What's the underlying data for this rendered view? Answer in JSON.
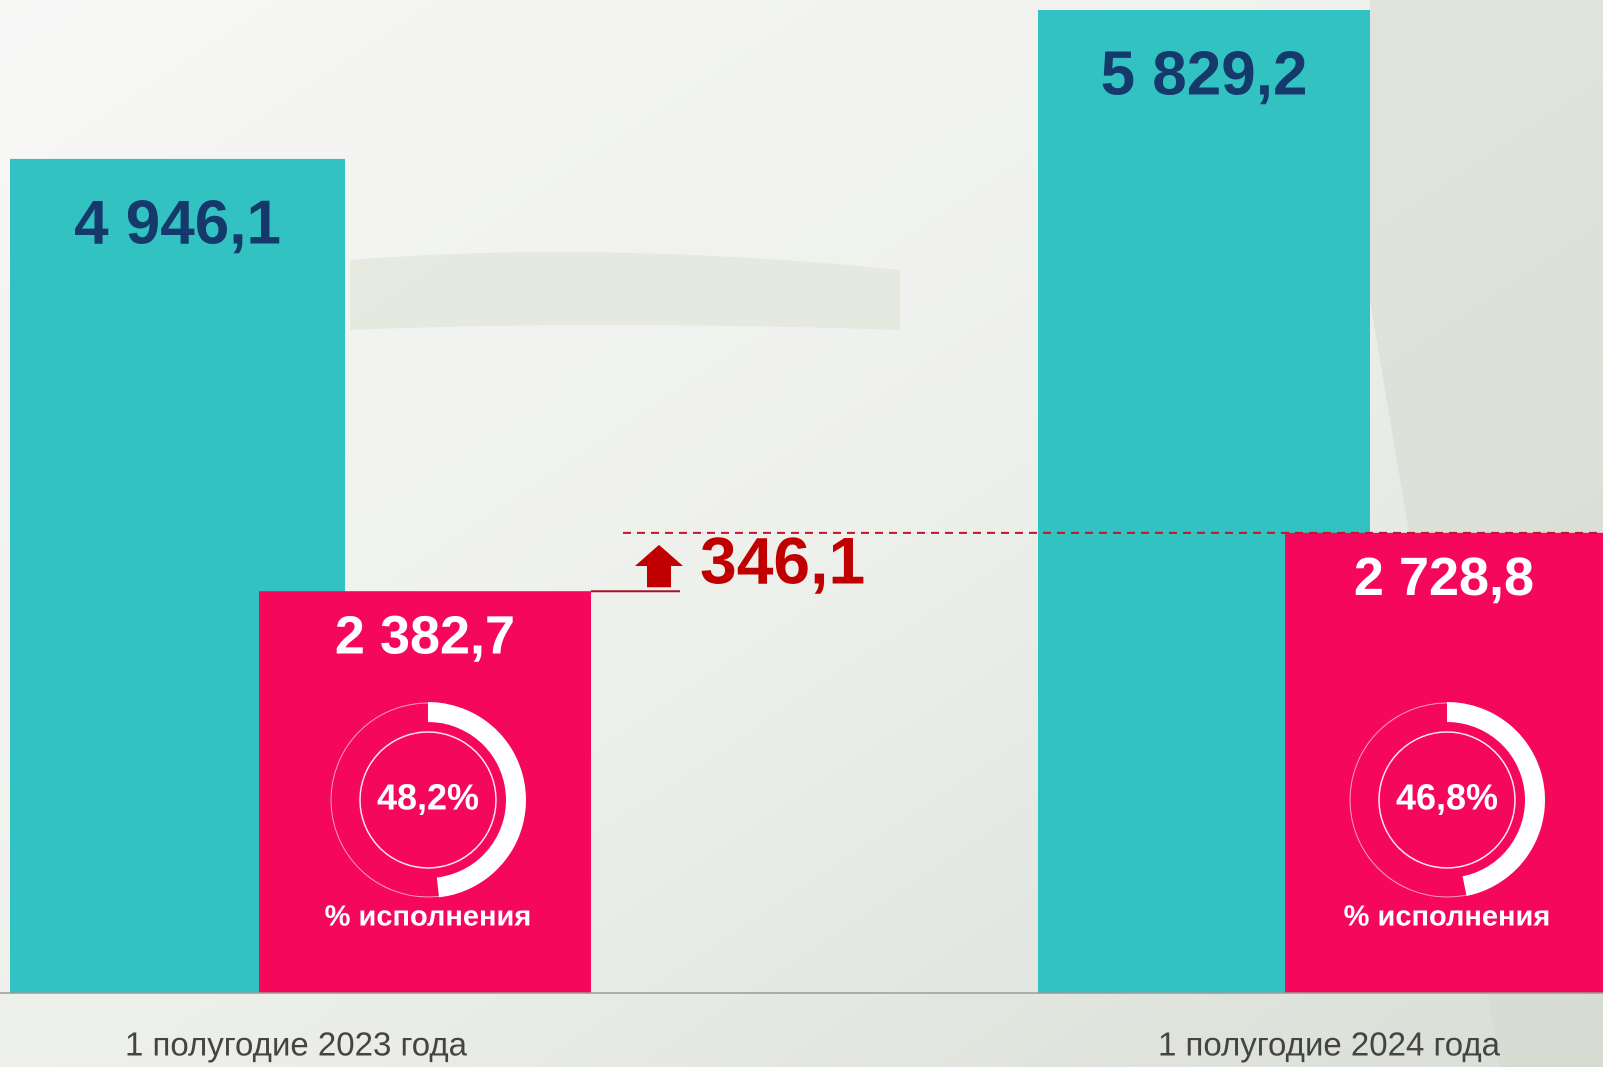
{
  "chart_data": {
    "type": "bar",
    "categories": [
      "1 полугодие 2023 года",
      "1 полугодие 2024 года"
    ],
    "series": [
      {
        "color": "#33c2c2",
        "values": [
          4946.1,
          5829.2
        ],
        "value_labels": [
          "4 946,1",
          "5 829,2"
        ]
      },
      {
        "color": "#f5085c",
        "values": [
          2382.7,
          2728.8
        ],
        "value_labels": [
          "2 382,7",
          "2 728,8"
        ]
      }
    ],
    "percent_values": [
      48.2,
      46.8
    ],
    "percent_labels": [
      "48,2%",
      "46,8%"
    ],
    "percent_caption": "% исполнения",
    "difference": 346.1,
    "difference_label": "346,1"
  }
}
